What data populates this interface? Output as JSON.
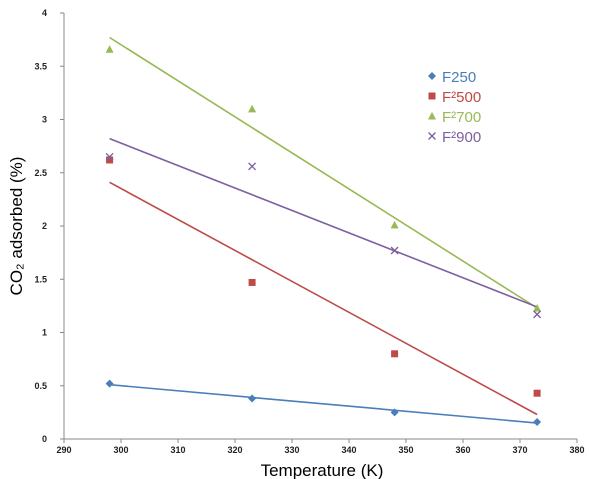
{
  "chart_data": {
    "type": "scatter",
    "title": "",
    "xlabel": "Temperature (K)",
    "ylabel": "CO₂ adsorbed (%)",
    "xlim": [
      290,
      380
    ],
    "ylim": [
      0,
      4
    ],
    "x_ticks": [
      290,
      300,
      310,
      320,
      330,
      340,
      350,
      360,
      370,
      380
    ],
    "y_ticks": [
      0,
      0.5,
      1,
      1.5,
      2,
      2.5,
      3,
      3.5,
      4
    ],
    "grid": false,
    "legend_position": "top-right",
    "series": [
      {
        "name": "F250",
        "color": "#4a7ebb",
        "marker": "diamond",
        "points": [
          [
            298,
            0.52
          ],
          [
            323,
            0.38
          ],
          [
            348,
            0.25
          ],
          [
            373,
            0.16
          ]
        ],
        "trendline": [
          [
            298,
            0.51
          ],
          [
            373,
            0.15
          ]
        ]
      },
      {
        "name": "F²500",
        "color": "#be4b48",
        "marker": "square",
        "points": [
          [
            298,
            2.62
          ],
          [
            323,
            1.47
          ],
          [
            348,
            0.8
          ],
          [
            373,
            0.43
          ]
        ],
        "trendline": [
          [
            298,
            2.41
          ],
          [
            373,
            0.23
          ]
        ]
      },
      {
        "name": "F²700",
        "color": "#98b954",
        "marker": "triangle",
        "points": [
          [
            298,
            3.66
          ],
          [
            323,
            3.1
          ],
          [
            348,
            2.01
          ],
          [
            373,
            1.23
          ]
        ],
        "trendline": [
          [
            298,
            3.77
          ],
          [
            373,
            1.23
          ]
        ]
      },
      {
        "name": "F²900",
        "color": "#7d60a0",
        "marker": "x",
        "points": [
          [
            298,
            2.65
          ],
          [
            323,
            2.56
          ],
          [
            348,
            1.77
          ],
          [
            373,
            1.17
          ]
        ],
        "trendline": [
          [
            298,
            2.82
          ],
          [
            373,
            1.24
          ]
        ]
      }
    ]
  }
}
